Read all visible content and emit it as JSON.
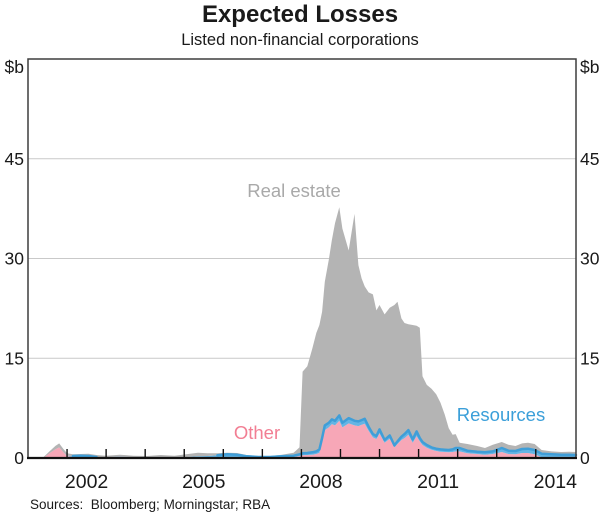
{
  "header": {
    "title": "Expected Losses",
    "subtitle": "Listed non-financial corporations"
  },
  "footer": {
    "sources": "Sources:  Bloomberg; Morningstar; RBA"
  },
  "chart_data": {
    "type": "area",
    "stacked": true,
    "title": "Expected Losses",
    "subtitle": "Listed non-financial corporations",
    "unit_label": "$b",
    "x_range": [
      2001,
      2015.03
    ],
    "ylim": [
      0,
      60
    ],
    "yticks": [
      0,
      15,
      30,
      45
    ],
    "gridlines": [
      15,
      30,
      45
    ],
    "xtick_years": [
      2002,
      2003,
      2004,
      2005,
      2006,
      2007,
      2008,
      2009,
      2010,
      2011,
      2012,
      2013,
      2014
    ],
    "xtick_labels": [
      2002,
      2005,
      2008,
      2011,
      2014
    ],
    "grid": true,
    "legend_position": "inline-labels",
    "colors": {
      "other_fill": "#f7a7b7",
      "other_label": "#f27e93",
      "resources_fill": "#64b5e4",
      "resources_line": "#3f9ed8",
      "resources_label": "#3b9fd9",
      "real_estate_fill": "#b4b4b4",
      "real_estate_label": "#a9a9a9",
      "gridline": "#c9c9c9",
      "frame": "#3d3d3d"
    },
    "resources_line_visible": [
      [
        2002.1,
        2002.8
      ],
      [
        2005.8,
        2015.1
      ]
    ],
    "x": [
      2001.4,
      2001.55,
      2001.7,
      2001.8,
      2001.9,
      2002.0,
      2002.15,
      2002.35,
      2002.55,
      2002.75,
      2003.0,
      2003.35,
      2003.7,
      2004.05,
      2004.4,
      2004.75,
      2005.05,
      2005.35,
      2005.6,
      2005.85,
      2006.1,
      2006.35,
      2006.6,
      2006.9,
      2007.2,
      2007.5,
      2007.8,
      2007.95,
      2008.03,
      2008.15,
      2008.28,
      2008.38,
      2008.46,
      2008.53,
      2008.6,
      2008.7,
      2008.78,
      2008.86,
      2008.97,
      2009.05,
      2009.21,
      2009.36,
      2009.46,
      2009.54,
      2009.62,
      2009.72,
      2009.83,
      2009.92,
      2010.0,
      2010.13,
      2010.26,
      2010.38,
      2010.46,
      2010.56,
      2010.64,
      2010.74,
      2010.85,
      2010.95,
      2011.03,
      2011.1,
      2011.21,
      2011.33,
      2011.45,
      2011.56,
      2011.67,
      2011.77,
      2011.87,
      2011.95,
      2012.05,
      2012.25,
      2012.5,
      2012.7,
      2012.9,
      2013.13,
      2013.3,
      2013.48,
      2013.65,
      2013.8,
      2013.97,
      2014.15,
      2014.4,
      2014.65,
      2014.85,
      2015.03
    ],
    "series": [
      {
        "name": "Other",
        "values": [
          0.05,
          0.7,
          1.3,
          1.6,
          0.9,
          0.3,
          0.15,
          0.1,
          0.1,
          0.1,
          0.08,
          0.2,
          0.1,
          0.07,
          0.1,
          0.07,
          0.1,
          0.15,
          0.1,
          0.1,
          0.1,
          0.1,
          0.05,
          0.05,
          0.05,
          0.1,
          0.15,
          0.3,
          0.4,
          0.45,
          0.5,
          0.6,
          0.8,
          2.4,
          4.2,
          4.6,
          5.1,
          4.9,
          5.6,
          4.6,
          5.2,
          4.9,
          4.8,
          5.0,
          5.15,
          4.1,
          3.1,
          2.85,
          3.7,
          2.3,
          2.9,
          1.6,
          2.1,
          2.7,
          3.0,
          3.5,
          2.3,
          3.3,
          2.5,
          1.95,
          1.55,
          1.25,
          1.05,
          0.95,
          0.9,
          0.85,
          0.9,
          1.0,
          1.0,
          0.7,
          0.6,
          0.5,
          0.6,
          0.9,
          0.6,
          0.55,
          0.75,
          0.75,
          0.55,
          0.1,
          0.05,
          0.05,
          0.05,
          0.05
        ]
      },
      {
        "name": "Resources",
        "values": [
          0,
          0,
          0,
          0,
          0,
          0.05,
          0.15,
          0.25,
          0.2,
          0.05,
          0.02,
          0.02,
          0.02,
          0.02,
          0.03,
          0.03,
          0.05,
          0.1,
          0.2,
          0.3,
          0.45,
          0.4,
          0.2,
          0.1,
          0.1,
          0.15,
          0.2,
          0.25,
          0.3,
          0.3,
          0.35,
          0.4,
          0.5,
          0.6,
          0.7,
          0.7,
          0.7,
          0.7,
          0.8,
          0.7,
          0.8,
          0.7,
          0.7,
          0.7,
          0.75,
          0.6,
          0.5,
          0.45,
          0.6,
          0.4,
          0.5,
          0.3,
          0.4,
          0.5,
          0.6,
          0.7,
          0.5,
          0.7,
          0.5,
          0.45,
          0.4,
          0.35,
          0.35,
          0.35,
          0.35,
          0.35,
          0.4,
          0.5,
          0.5,
          0.4,
          0.35,
          0.35,
          0.4,
          0.6,
          0.5,
          0.5,
          0.6,
          0.65,
          0.65,
          0.55,
          0.5,
          0.45,
          0.45,
          0.4
        ]
      },
      {
        "name": "Real estate",
        "values": [
          0.1,
          0.3,
          0.5,
          0.6,
          0.5,
          0.35,
          0.25,
          0.25,
          0.35,
          0.3,
          0.25,
          0.28,
          0.23,
          0.21,
          0.32,
          0.25,
          0.4,
          0.55,
          0.4,
          0.3,
          0.25,
          0.25,
          0.2,
          0.15,
          0.15,
          0.25,
          0.45,
          1.05,
          12.3,
          13.05,
          15.65,
          17.8,
          18.7,
          19.0,
          21.6,
          24.5,
          27.0,
          29.7,
          31.3,
          29.2,
          25.2,
          31.1,
          23.5,
          21.3,
          19.9,
          20.2,
          21.0,
          18.9,
          18.7,
          18.9,
          19.2,
          21.1,
          21.0,
          17.8,
          16.7,
          15.9,
          17.2,
          15.9,
          16.6,
          9.9,
          9.05,
          8.8,
          8.2,
          7.0,
          5.25,
          3.3,
          2.2,
          2.1,
          0.8,
          1.0,
          0.85,
          0.65,
          1.0,
          0.9,
          0.9,
          0.75,
          0.85,
          0.9,
          0.9,
          0.55,
          0.45,
          0.4,
          0.45,
          0.45
        ]
      }
    ]
  }
}
